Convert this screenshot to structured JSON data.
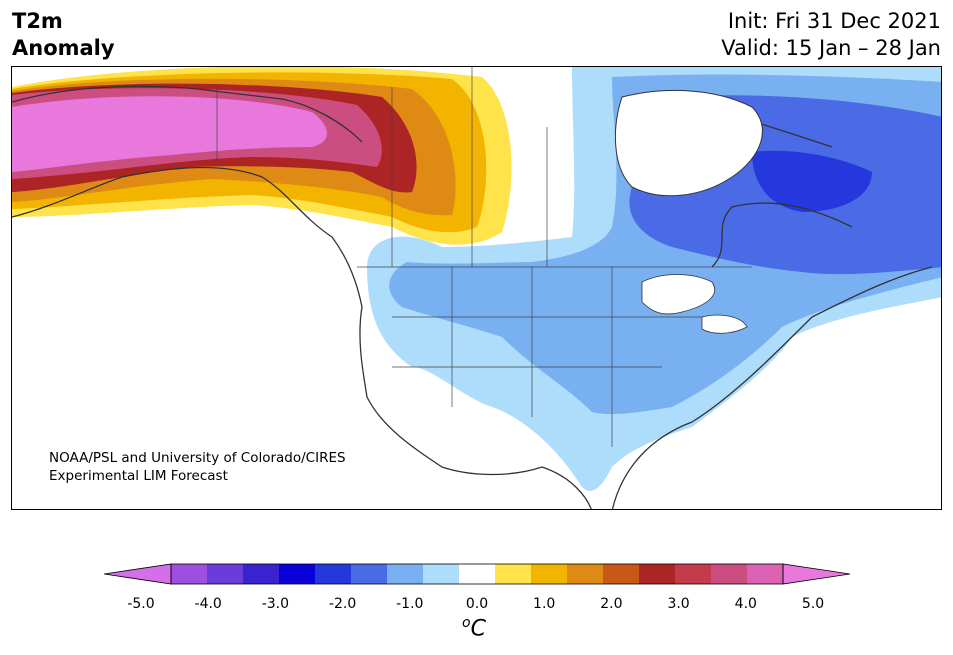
{
  "title": {
    "line1": "T2m",
    "line2": "Anomaly"
  },
  "header": {
    "init": "Init: Fri 31 Dec 2021",
    "valid": "Valid: 15 Jan – 28 Jan"
  },
  "credit": {
    "line1": "NOAA/PSL and University of Colorado/CIRES",
    "line2": "Experimental LIM Forecast"
  },
  "colorbar": {
    "colors": [
      "#d36fe8",
      "#9e4fe0",
      "#6a3ddb",
      "#3a22d0",
      "#0a00d8",
      "#2438de",
      "#4b6be6",
      "#78b0f2",
      "#aedcfb",
      "#ffffff",
      "#ffe34a",
      "#f3b400",
      "#de8a14",
      "#c85818",
      "#ac2424",
      "#c43c4c",
      "#cc4e80",
      "#dc62b4",
      "#e878dc"
    ],
    "ticks": [
      "-5.0",
      "-4.0",
      "-3.0",
      "-2.0",
      "-1.0",
      "0.0",
      "1.0",
      "2.0",
      "3.0",
      "4.0",
      "5.0"
    ],
    "unit_sup": "o",
    "unit": "C"
  },
  "legend_colors": {
    "warm_extreme": "#e878dc",
    "warm_strong": "#ac2424",
    "warm_moderate": "#de8a14",
    "warm_weak": "#ffe34a",
    "cold_weak": "#aedcfb",
    "cold_moderate": "#78b0f2",
    "cold_strong": "#4b6be6",
    "cold_extreme": "#2438de"
  }
}
